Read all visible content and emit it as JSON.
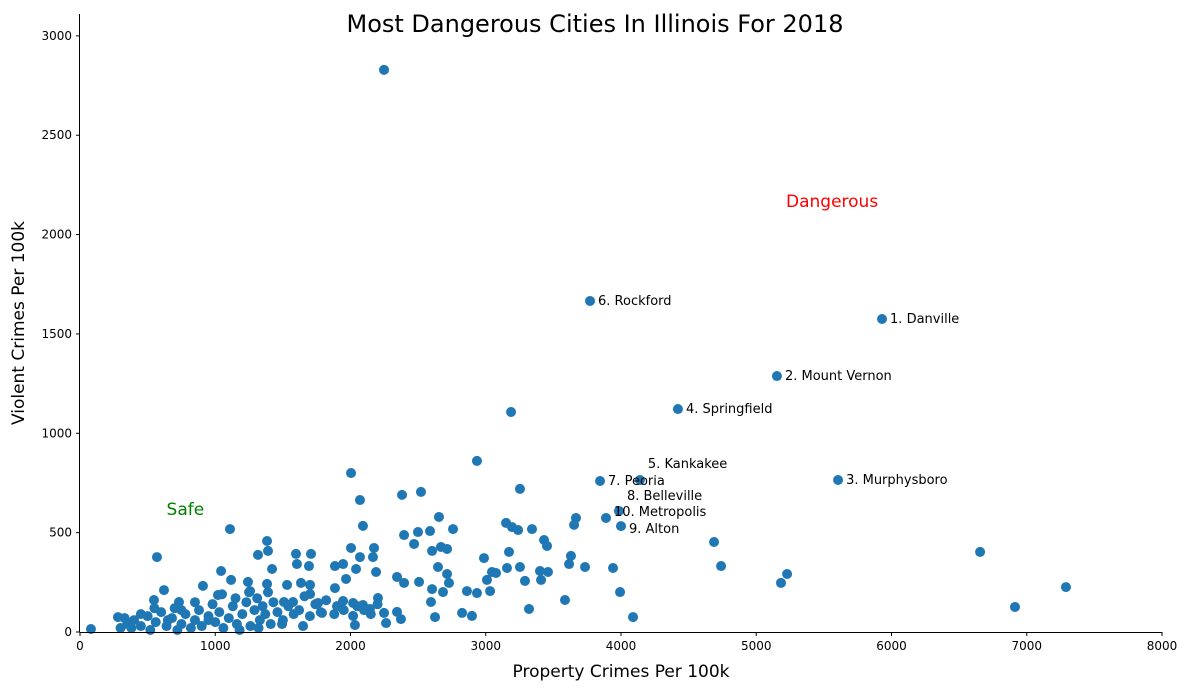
{
  "chart_data": {
    "type": "scatter",
    "title": "Most Dangerous Cities In Illinois For 2018",
    "xlabel": "Property Crimes Per 100k",
    "ylabel": "Violent Crimes Per 100k",
    "xlim": [
      0,
      8000
    ],
    "ylim": [
      0,
      3110
    ],
    "xticks": [
      0,
      1000,
      2000,
      3000,
      4000,
      5000,
      6000,
      7000,
      8000
    ],
    "yticks": [
      0,
      500,
      1000,
      1500,
      2000,
      2500,
      3000
    ],
    "grid": false,
    "point_color": "#1f77b4",
    "annotations": [
      {
        "text": "Dangerous",
        "x": 5220,
        "y": 2140,
        "color": "#ff0000"
      },
      {
        "text": "Safe",
        "x": 640,
        "y": 590,
        "color": "#008000"
      }
    ],
    "labeled_points": [
      {
        "label": "1. Danville",
        "x": 5930,
        "y": 1575
      },
      {
        "label": "2. Mount Vernon",
        "x": 5153,
        "y": 1288
      },
      {
        "label": "3. Murphysboro",
        "x": 5605,
        "y": 765
      },
      {
        "label": "4. Springfield",
        "x": 4421,
        "y": 1122
      },
      {
        "label": "5. Kankakee",
        "x": 4140,
        "y": 765
      },
      {
        "label": "6. Rockford",
        "x": 3771,
        "y": 1666
      },
      {
        "label": "7. Peoria",
        "x": 3845,
        "y": 760
      },
      {
        "label": "8. Belleville",
        "x": 3985,
        "y": 609
      },
      {
        "label": "9. Alton",
        "x": 4000,
        "y": 533
      },
      {
        "label": "10. Metropolis",
        "x": 3889,
        "y": 574
      }
    ],
    "points": [
      [
        2004,
        800
      ],
      [
        2935,
        861
      ],
      [
        2381,
        690
      ],
      [
        2521,
        705
      ],
      [
        3253,
        720
      ],
      [
        2070,
        664
      ],
      [
        2092,
        534
      ],
      [
        1109,
        518
      ],
      [
        2654,
        579
      ],
      [
        2758,
        518
      ],
      [
        2588,
        508
      ],
      [
        2499,
        503
      ],
      [
        2396,
        488
      ],
      [
        2470,
        443
      ],
      [
        2603,
        408
      ],
      [
        2669,
        428
      ],
      [
        2714,
        418
      ],
      [
        3150,
        549
      ],
      [
        3194,
        528
      ],
      [
        3239,
        513
      ],
      [
        3342,
        518
      ],
      [
        3431,
        463
      ],
      [
        3453,
        433
      ],
      [
        3172,
        403
      ],
      [
        2987,
        372
      ],
      [
        3157,
        322
      ],
      [
        3253,
        327
      ],
      [
        3401,
        307
      ],
      [
        3460,
        302
      ],
      [
        3290,
        257
      ],
      [
        3409,
        262
      ],
      [
        3320,
        116
      ],
      [
        3586,
        161
      ],
      [
        3667,
        574
      ],
      [
        3653,
        539
      ],
      [
        3630,
        383
      ],
      [
        3616,
        342
      ],
      [
        3734,
        327
      ],
      [
        3941,
        322
      ],
      [
        3993,
        201
      ],
      [
        4089,
        75
      ],
      [
        4688,
        453
      ],
      [
        4740,
        332
      ],
      [
        5228,
        292
      ],
      [
        5183,
        247
      ],
      [
        6655,
        403
      ],
      [
        6913,
        126
      ],
      [
        7290,
        226
      ],
      [
        3187,
        1107
      ],
      [
        2248,
        2829
      ],
      [
        1383,
        458
      ],
      [
        1390,
        408
      ],
      [
        1316,
        388
      ],
      [
        1420,
        317
      ],
      [
        1597,
        393
      ],
      [
        1708,
        393
      ],
      [
        1604,
        342
      ],
      [
        1693,
        332
      ],
      [
        2004,
        423
      ],
      [
        2174,
        423
      ],
      [
        2166,
        377
      ],
      [
        2070,
        377
      ],
      [
        2041,
        317
      ],
      [
        2189,
        302
      ],
      [
        1885,
        332
      ],
      [
        1945,
        342
      ],
      [
        1967,
        267
      ],
      [
        1885,
        221
      ],
      [
        569,
        377
      ],
      [
        1043,
        307
      ],
      [
        909,
        232
      ],
      [
        1117,
        262
      ],
      [
        621,
        211
      ],
      [
        1531,
        237
      ],
      [
        1634,
        247
      ],
      [
        1701,
        237
      ],
      [
        1701,
        191
      ],
      [
        2203,
        171
      ],
      [
        2248,
        96
      ],
      [
        2263,
        45
      ],
      [
        2344,
        101
      ],
      [
        2373,
        65
      ],
      [
        2344,
        277
      ],
      [
        2396,
        247
      ],
      [
        2507,
        252
      ],
      [
        2647,
        327
      ],
      [
        2714,
        292
      ],
      [
        2728,
        247
      ],
      [
        2603,
        216
      ],
      [
        2684,
        201
      ],
      [
        2595,
        151
      ],
      [
        2625,
        75
      ],
      [
        2825,
        96
      ],
      [
        2898,
        81
      ],
      [
        2861,
        206
      ],
      [
        2935,
        196
      ],
      [
        3032,
        206
      ],
      [
        3009,
        262
      ],
      [
        3046,
        302
      ],
      [
        3076,
        297
      ],
      [
        2033,
        35
      ],
      [
        2019,
        81
      ],
      [
        1649,
        30
      ],
      [
        1494,
        40
      ],
      [
        1789,
        96
      ],
      [
        1945,
        156
      ],
      [
        2019,
        146
      ],
      [
        2092,
        136
      ],
      [
        2144,
        116
      ],
      [
        1760,
        146
      ],
      [
        1575,
        151
      ],
      [
        1508,
        151
      ],
      [
        1242,
        252
      ],
      [
        1257,
        206
      ],
      [
        1383,
        242
      ],
      [
        1020,
        186
      ],
      [
        732,
        151
      ],
      [
        547,
        161
      ],
      [
        281,
        75
      ],
      [
        81,
        15
      ],
      [
        300,
        20
      ],
      [
        350,
        40
      ],
      [
        400,
        60
      ],
      [
        450,
        30
      ],
      [
        500,
        80
      ],
      [
        520,
        10
      ],
      [
        560,
        50
      ],
      [
        600,
        100
      ],
      [
        640,
        30
      ],
      [
        680,
        70
      ],
      [
        700,
        120
      ],
      [
        750,
        40
      ],
      [
        780,
        90
      ],
      [
        820,
        20
      ],
      [
        850,
        60
      ],
      [
        880,
        110
      ],
      [
        900,
        30
      ],
      [
        950,
        80
      ],
      [
        980,
        140
      ],
      [
        1000,
        50
      ],
      [
        1030,
        100
      ],
      [
        1060,
        20
      ],
      [
        1100,
        70
      ],
      [
        1130,
        130
      ],
      [
        1160,
        40
      ],
      [
        1200,
        90
      ],
      [
        1230,
        150
      ],
      [
        1260,
        30
      ],
      [
        1290,
        110
      ],
      [
        1310,
        170
      ],
      [
        1330,
        60
      ],
      [
        1350,
        130
      ],
      [
        1370,
        90
      ],
      [
        1390,
        200
      ],
      [
        1410,
        40
      ],
      [
        1430,
        150
      ],
      [
        1460,
        100
      ],
      [
        1500,
        60
      ],
      [
        1540,
        130
      ],
      [
        1580,
        90
      ],
      [
        1620,
        110
      ],
      [
        1660,
        180
      ],
      [
        1700,
        80
      ],
      [
        1740,
        140
      ],
      [
        1780,
        100
      ],
      [
        1820,
        160
      ],
      [
        1880,
        90
      ],
      [
        1900,
        130
      ],
      [
        1950,
        110
      ],
      [
        2050,
        130
      ],
      [
        2100,
        110
      ],
      [
        2150,
        90
      ],
      [
        2200,
        140
      ],
      [
        1250,
        200
      ],
      [
        1150,
        170
      ],
      [
        1050,
        190
      ],
      [
        950,
        60
      ],
      [
        850,
        150
      ],
      [
        750,
        110
      ],
      [
        650,
        60
      ],
      [
        550,
        120
      ],
      [
        450,
        90
      ],
      [
        380,
        20
      ],
      [
        330,
        70
      ],
      [
        720,
        10
      ],
      [
        1180,
        10
      ],
      [
        1320,
        20
      ]
    ]
  }
}
